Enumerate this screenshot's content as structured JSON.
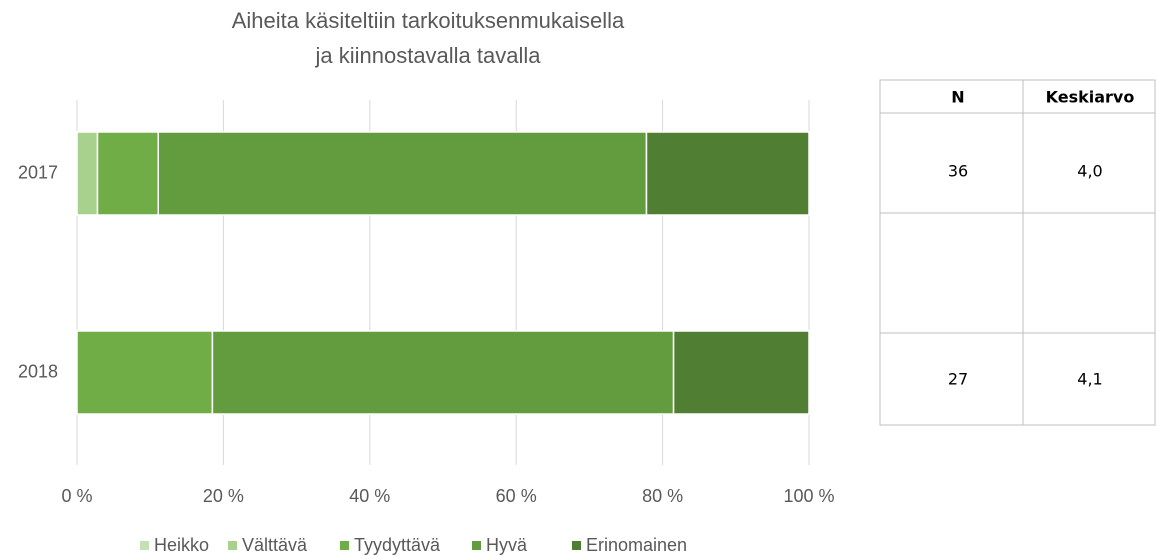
{
  "chart_data": {
    "type": "stacked_barh",
    "title": [
      "Aiheita käsiteltiin tarkoituksenmukaisella",
      "ja kiinnostavalla tavalla"
    ],
    "categories": [
      "2017",
      "2018"
    ],
    "series": [
      {
        "name": "Heikko",
        "color": "#c5e0b4",
        "values": [
          0,
          0
        ]
      },
      {
        "name": "Välttävä",
        "color": "#a9d18e",
        "values": [
          2.8,
          0
        ]
      },
      {
        "name": "Tyydyttävä",
        "color": "#70ad47",
        "values": [
          8.3,
          18.5
        ]
      },
      {
        "name": "Hyvä",
        "color": "#639c3e",
        "values": [
          66.7,
          63.0
        ]
      },
      {
        "name": "Erinomainen",
        "color": "#507e32",
        "values": [
          22.2,
          18.5
        ]
      }
    ],
    "xlim": [
      0,
      100
    ],
    "xticks": [
      {
        "value": 0,
        "label": "0 %"
      },
      {
        "value": 20,
        "label": "20 %"
      },
      {
        "value": 40,
        "label": "40 %"
      },
      {
        "value": 60,
        "label": "60 %"
      },
      {
        "value": 80,
        "label": "80 %"
      },
      {
        "value": 100,
        "label": "100 %"
      }
    ],
    "grid": true,
    "legend": "bottom"
  },
  "table": {
    "header": [
      "N",
      "Keskiarvo"
    ],
    "rows": [
      [
        36,
        "4,0"
      ],
      [
        27,
        "4,1"
      ]
    ]
  }
}
